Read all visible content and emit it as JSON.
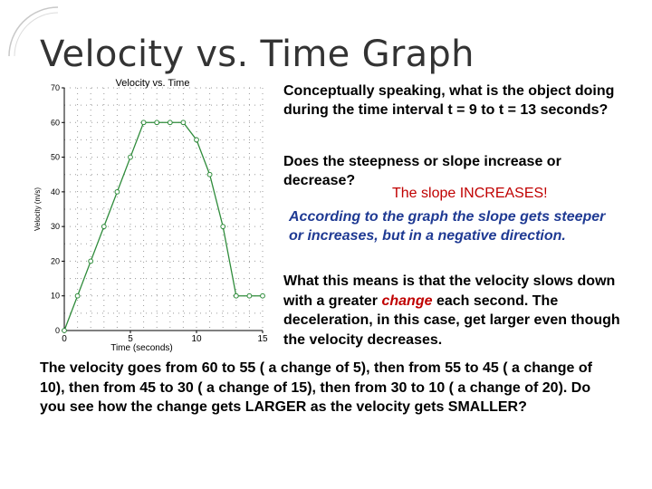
{
  "slide": {
    "title": "Velocity vs. Time Graph",
    "question1": "Conceptually speaking, what is the object doing during the time interval t = 9 to t = 13 seconds?",
    "question2": "Does the steepness or slope increase or decrease?",
    "answer": "The slope INCREASES!",
    "explanation": "According to the graph the slope gets steeper or increases, but in a negative direction.",
    "means_before": "What this means is that the velocity slows down with a greater ",
    "means_highlight": "change",
    "means_after": " each second. The deceleration, in this case, get larger even though the velocity decreases.",
    "bottom_text": "The velocity goes from 60 to 55 ( a change of 5), then from 55 to 45 ( a change of 10), then from 45 to 30 ( a change of 15), then from 30 to 10 ( a change of 20). Do you see how the change gets LARGER as the velocity gets SMALLER?"
  },
  "chart_data": {
    "type": "line",
    "title": "Velocity vs. Time",
    "xlabel": "Time (seconds)",
    "ylabel": "Velocity (m/s)",
    "xlim": [
      0,
      15
    ],
    "ylim": [
      0,
      70
    ],
    "xticks": [
      0,
      5,
      10,
      15
    ],
    "yticks": [
      0,
      10,
      20,
      30,
      40,
      50,
      60,
      70
    ],
    "grid": true,
    "series": [
      {
        "color": "#2e8b3a",
        "x": [
          0,
          1,
          2,
          3,
          4,
          5,
          6,
          7,
          8,
          9,
          10,
          11,
          12,
          13,
          14,
          15
        ],
        "y": [
          0,
          10,
          20,
          30,
          40,
          50,
          60,
          60,
          60,
          60,
          55,
          45,
          30,
          10,
          10,
          10
        ]
      }
    ]
  }
}
